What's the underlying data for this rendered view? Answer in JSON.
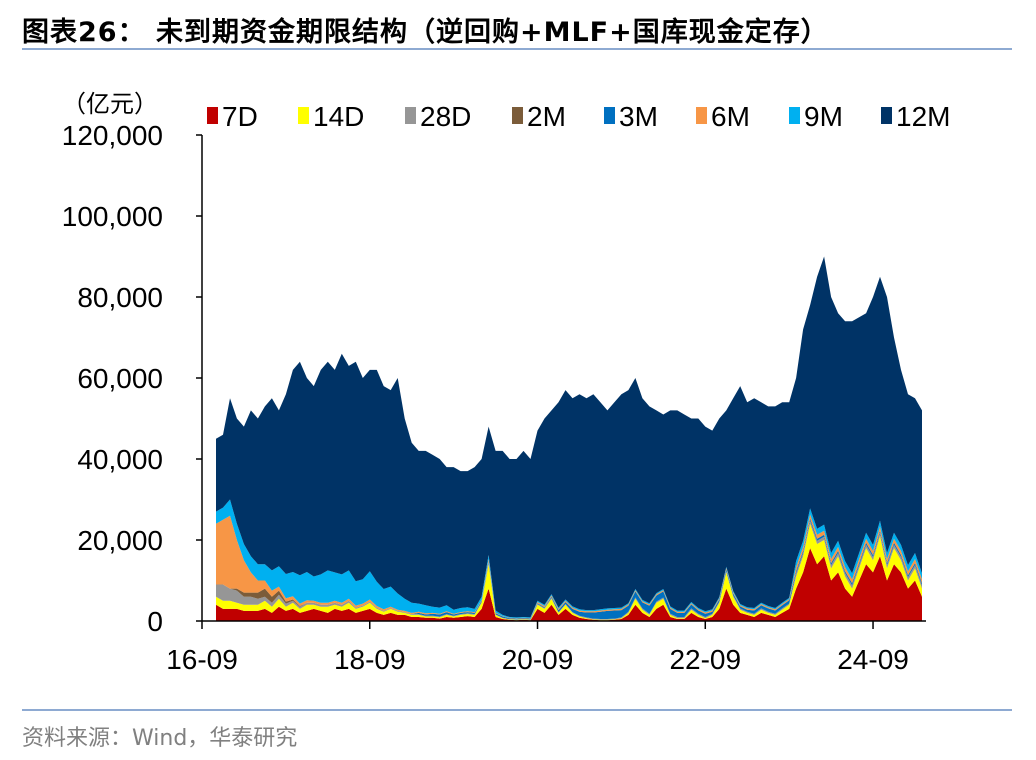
{
  "title": "图表26：  未到期资金期限结构（逆回购+MLF+国库现金定存）",
  "source": "资料来源：Wind，华泰研究",
  "chart_data": {
    "type": "area",
    "stacked": true,
    "title": "",
    "ylabel": "（亿元）",
    "ylim": [
      0,
      120000
    ],
    "yticks": [
      "0",
      "20,000",
      "40,000",
      "60,000",
      "80,000",
      "100,000",
      "120,000"
    ],
    "xticks": [
      "16-09",
      "18-09",
      "20-09",
      "22-09",
      "24-09"
    ],
    "legend_position": "top",
    "grid": false,
    "x": [
      "16-11",
      "16-12",
      "17-01",
      "17-02",
      "17-03",
      "17-04",
      "17-05",
      "17-06",
      "17-07",
      "17-08",
      "17-09",
      "17-10",
      "17-11",
      "17-12",
      "18-01",
      "18-02",
      "18-03",
      "18-04",
      "18-05",
      "18-06",
      "18-07",
      "18-08",
      "18-09",
      "18-10",
      "18-11",
      "18-12",
      "19-01",
      "19-02",
      "19-03",
      "19-04",
      "19-05",
      "19-06",
      "19-07",
      "19-08",
      "19-09",
      "19-10",
      "19-11",
      "19-12",
      "20-01",
      "20-02",
      "20-03",
      "20-04",
      "20-05",
      "20-06",
      "20-07",
      "20-08",
      "20-09",
      "20-10",
      "20-11",
      "20-12",
      "21-01",
      "21-02",
      "21-03",
      "21-04",
      "21-05",
      "21-06",
      "21-07",
      "21-08",
      "21-09",
      "21-10",
      "21-11",
      "21-12",
      "22-01",
      "22-02",
      "22-03",
      "22-04",
      "22-05",
      "22-06",
      "22-07",
      "22-08",
      "22-09",
      "22-10",
      "22-11",
      "22-12",
      "23-01",
      "23-02",
      "23-03",
      "23-04",
      "23-05",
      "23-06",
      "23-07",
      "23-08",
      "23-09",
      "23-10",
      "23-11",
      "23-12",
      "24-01",
      "24-02",
      "24-03",
      "24-04",
      "24-05",
      "24-06",
      "24-07",
      "24-08",
      "24-09",
      "24-10",
      "24-11",
      "24-12",
      "25-01",
      "25-02",
      "25-03",
      "25-04"
    ],
    "series": [
      {
        "name": "7D",
        "color": "#c00000",
        "values": [
          4000,
          3000,
          3000,
          3000,
          2500,
          2500,
          2500,
          3000,
          2000,
          3500,
          2500,
          3000,
          2000,
          2500,
          3000,
          2500,
          2000,
          3000,
          2500,
          3000,
          2000,
          2500,
          3000,
          2000,
          1500,
          2000,
          1500,
          1500,
          1000,
          1000,
          800,
          800,
          600,
          1000,
          800,
          1000,
          1200,
          1000,
          3000,
          8000,
          1000,
          500,
          300,
          200,
          300,
          200,
          3000,
          2000,
          4000,
          1500,
          3000,
          1500,
          800,
          500,
          300,
          200,
          200,
          300,
          500,
          1500,
          4000,
          2000,
          1000,
          3000,
          4000,
          1000,
          500,
          500,
          2000,
          1000,
          500,
          1000,
          3000,
          8000,
          4000,
          2000,
          1500,
          1000,
          2000,
          1500,
          1000,
          2000,
          3000,
          8000,
          12000,
          18000,
          14000,
          16000,
          10000,
          12000,
          8000,
          6000,
          10000,
          14000,
          12000,
          16000,
          10000,
          14000,
          12000,
          8000,
          10000,
          6000
        ]
      },
      {
        "name": "14D",
        "color": "#ffff00",
        "values": [
          2000,
          2000,
          2000,
          1500,
          1500,
          1500,
          1500,
          2000,
          1500,
          2000,
          1000,
          1500,
          1000,
          1500,
          1000,
          1000,
          1500,
          1000,
          1000,
          1500,
          1000,
          1000,
          1500,
          1000,
          800,
          1000,
          800,
          500,
          500,
          500,
          300,
          300,
          300,
          500,
          300,
          500,
          500,
          500,
          1500,
          6000,
          500,
          200,
          100,
          100,
          100,
          100,
          1000,
          1000,
          1500,
          500,
          1000,
          500,
          300,
          200,
          100,
          100,
          100,
          100,
          200,
          500,
          1500,
          800,
          500,
          1500,
          1500,
          500,
          200,
          200,
          800,
          500,
          200,
          500,
          1500,
          4000,
          2000,
          800,
          500,
          500,
          800,
          500,
          500,
          800,
          1000,
          3000,
          4000,
          6000,
          5000,
          4000,
          3000,
          4000,
          3000,
          2000,
          3000,
          4000,
          3000,
          5000,
          3000,
          4000,
          3000,
          2000,
          3000,
          2000
        ]
      },
      {
        "name": "28D",
        "color": "#969696",
        "values": [
          3000,
          4000,
          3000,
          3000,
          2000,
          2000,
          1500,
          1000,
          1000,
          1000,
          800,
          500,
          500,
          500,
          500,
          500,
          500,
          500,
          500,
          500,
          300,
          300,
          300,
          300,
          200,
          200,
          200,
          200,
          200,
          200,
          200,
          200,
          200,
          200,
          200,
          200,
          200,
          200,
          200,
          500,
          100,
          100,
          100,
          100,
          100,
          100,
          200,
          200,
          200,
          200,
          200,
          200,
          200,
          200,
          200,
          200,
          200,
          200,
          200,
          300,
          300,
          300,
          300,
          300,
          300,
          300,
          300,
          300,
          300,
          300,
          300,
          300,
          300,
          300,
          300,
          300,
          300,
          300,
          300,
          300,
          300,
          300,
          300,
          800,
          800,
          800,
          800,
          800,
          800,
          800,
          800,
          800,
          800,
          800,
          800,
          800,
          800,
          800,
          800,
          800,
          800,
          800
        ]
      },
      {
        "name": "2M",
        "color": "#7b5c3a",
        "values": [
          0,
          0,
          0,
          500,
          1000,
          1000,
          1500,
          2000,
          1500,
          1000,
          500,
          300,
          200,
          0,
          0,
          0,
          0,
          0,
          0,
          0,
          0,
          0,
          0,
          0,
          0,
          0,
          0,
          0,
          0,
          0,
          0,
          0,
          0,
          0,
          0,
          0,
          0,
          0,
          0,
          0,
          0,
          0,
          0,
          0,
          0,
          0,
          0,
          0,
          0,
          0,
          0,
          0,
          0,
          0,
          0,
          0,
          0,
          0,
          0,
          0,
          0,
          0,
          0,
          0,
          0,
          0,
          0,
          0,
          0,
          0,
          0,
          0,
          0,
          0,
          0,
          0,
          0,
          0,
          0,
          0,
          0,
          0,
          0,
          0,
          0,
          0,
          0,
          0,
          0,
          0,
          0,
          0,
          0,
          0,
          0,
          0,
          0,
          0,
          0,
          0,
          0,
          0
        ]
      },
      {
        "name": "3M",
        "color": "#0070c0",
        "values": [
          0,
          0,
          0,
          0,
          0,
          0,
          0,
          0,
          0,
          0,
          0,
          0,
          0,
          0,
          0,
          0,
          0,
          0,
          0,
          0,
          0,
          0,
          0,
          0,
          0,
          0,
          0,
          0,
          0,
          300,
          300,
          500,
          500,
          500,
          300,
          300,
          300,
          300,
          300,
          300,
          300,
          300,
          200,
          200,
          200,
          200,
          200,
          200,
          300,
          500,
          500,
          800,
          1000,
          1200,
          1500,
          1800,
          2000,
          2000,
          1800,
          1500,
          1500,
          1500,
          2000,
          1500,
          1500,
          1200,
          1000,
          1000,
          1000,
          800,
          800,
          500,
          500,
          500,
          500,
          500,
          500,
          800,
          800,
          800,
          800,
          800,
          800,
          500,
          500,
          500,
          500,
          500,
          500,
          500,
          500,
          500,
          500,
          500,
          500,
          500,
          500,
          500,
          500,
          500,
          500,
          500
        ]
      },
      {
        "name": "6M",
        "color": "#f79646",
        "values": [
          15000,
          16000,
          18000,
          12000,
          8000,
          5000,
          3000,
          2000,
          1500,
          1000,
          800,
          800,
          600,
          600,
          500,
          500,
          500,
          500,
          500,
          500,
          500,
          500,
          500,
          400,
          400,
          300,
          300,
          300,
          300,
          300,
          300,
          200,
          200,
          200,
          200,
          200,
          200,
          200,
          200,
          500,
          200,
          100,
          100,
          100,
          100,
          100,
          300,
          300,
          300,
          300,
          300,
          300,
          300,
          300,
          300,
          300,
          300,
          300,
          300,
          300,
          300,
          300,
          300,
          300,
          300,
          300,
          300,
          300,
          300,
          300,
          300,
          300,
          300,
          300,
          300,
          300,
          300,
          300,
          300,
          300,
          300,
          300,
          300,
          1000,
          1000,
          1000,
          1000,
          1000,
          1000,
          1000,
          1000,
          1000,
          1000,
          1000,
          1000,
          1000,
          1000,
          1000,
          1000,
          1000,
          1000,
          1000
        ]
      },
      {
        "name": "9M",
        "color": "#00b0f0",
        "values": [
          3000,
          3000,
          4000,
          4000,
          4000,
          4000,
          4000,
          4000,
          5000,
          5000,
          6000,
          6000,
          7000,
          7000,
          6000,
          7000,
          8000,
          7000,
          7000,
          7000,
          6000,
          6000,
          7000,
          6000,
          5000,
          5000,
          4000,
          3000,
          2500,
          2000,
          2000,
          1500,
          1500,
          1500,
          1000,
          1000,
          1000,
          800,
          800,
          1000,
          500,
          300,
          200,
          200,
          200,
          200,
          300,
          300,
          300,
          300,
          300,
          300,
          300,
          300,
          300,
          300,
          300,
          300,
          300,
          300,
          300,
          300,
          300,
          300,
          300,
          300,
          300,
          300,
          300,
          300,
          300,
          300,
          300,
          300,
          300,
          300,
          300,
          300,
          300,
          300,
          300,
          300,
          300,
          1500,
          1500,
          1500,
          1500,
          1500,
          1500,
          1500,
          1500,
          1500,
          1500,
          1500,
          1500,
          1500,
          1500,
          1500,
          1500,
          1500,
          1500,
          1500
        ]
      },
      {
        "name": "12M",
        "color": "#003366",
        "values": [
          18000,
          18000,
          25000,
          26000,
          29000,
          36000,
          36000,
          39000,
          42500,
          38500,
          44400,
          49900,
          52700,
          47900,
          47000,
          50500,
          51500,
          50000,
          54500,
          50500,
          54200,
          49700,
          49700,
          52300,
          50100,
          48500,
          53200,
          44500,
          39500,
          37700,
          38100,
          37500,
          36700,
          34100,
          35200,
          33800,
          33600,
          35000,
          34000,
          31700,
          39400,
          40500,
          39000,
          39100,
          41000,
          39100,
          42000,
          46000,
          45400,
          50700,
          51700,
          51400,
          53100,
          52300,
          53300,
          51100,
          48900,
          50800,
          52700,
          52600,
          52100,
          49800,
          48600,
          45100,
          43100,
          48400,
          49400,
          48400,
          45300,
          46800,
          45600,
          44100,
          44100,
          38600,
          47600,
          53800,
          50600,
          51800,
          49500,
          49300,
          49800,
          49500,
          48300,
          45200,
          52200,
          50200,
          62200,
          66200,
          63200,
          56200,
          59200,
          62200,
          58200,
          54200,
          61200,
          60200,
          63200,
          48200,
          43200,
          42200,
          38200,
          40200
        ]
      }
    ]
  }
}
